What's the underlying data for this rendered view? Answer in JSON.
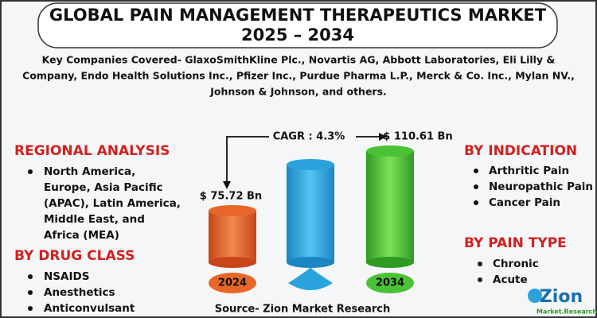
{
  "header": {
    "title_line1": "GLOBAL PAIN MANAGEMENT THERAPEUTICS MARKET",
    "title_line2": "2025 – 2034"
  },
  "key_companies": [
    "Key Companies Covered- GlaxoSmithKline Plc., Novartis AG, Abbott Laboratories, Eli Lilly &",
    "Company, Endo Health Solutions Inc., Pfizer Inc., Purdue Pharma L.P., Merck & Co. Inc., Mylan NV.,",
    "Johnson & Johnson, and others."
  ],
  "regional_analysis": {
    "heading": "REGIONAL ANALYSIS",
    "lines": [
      "North America,",
      "Europe, Asia Pacific",
      "(APAC), Latin America,",
      "Middle East, and",
      "Africa (MEA)"
    ]
  },
  "drug_class": {
    "heading": "BY  DRUG CLASS",
    "items": [
      "NSAIDS",
      "Anesthetics",
      "Anticonvulsant"
    ]
  },
  "indication": {
    "heading": "BY INDICATION",
    "items": [
      "Arthritic Pain",
      "Neuropathic Pain",
      "Cancer Pain"
    ]
  },
  "pain_type": {
    "heading": "BY PAIN TYPE",
    "items": [
      "Chronic",
      "Acute"
    ]
  },
  "market": {
    "cagr": "CAGR : 4.3%",
    "start_value": "$ 75.72  Bn",
    "start_year": "2024",
    "end_value": "$ 110.61 Bn",
    "end_year": "2034"
  },
  "source": "Source- Zion Market Research",
  "logo": {
    "name": "Zion",
    "sub": "Market.Research"
  }
}
